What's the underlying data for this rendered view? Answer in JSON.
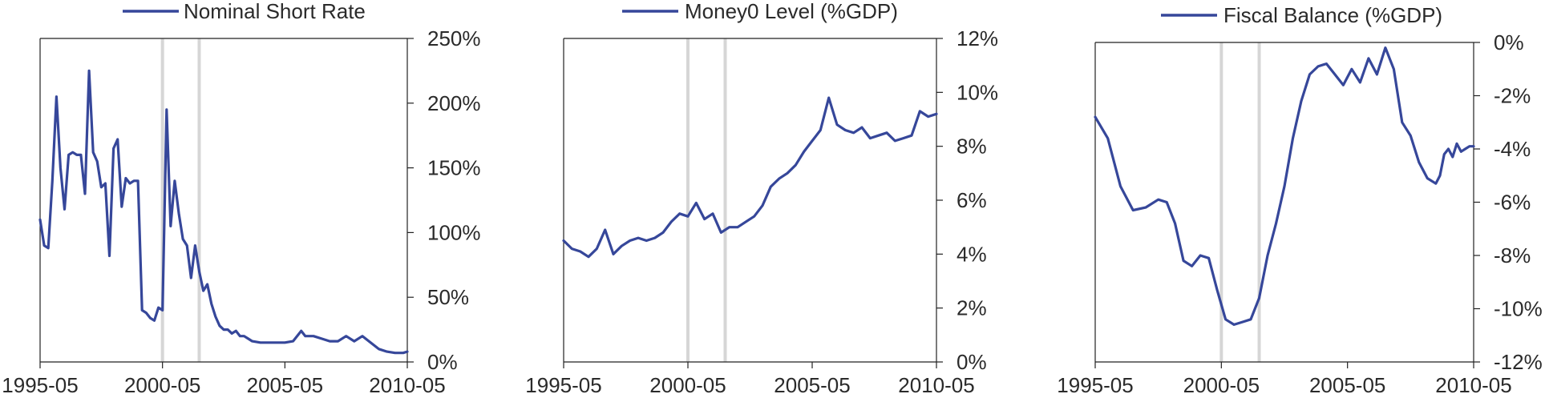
{
  "chart_data": [
    {
      "type": "line",
      "legend": "Nominal Short Rate",
      "color": "#36479a",
      "x_ticks": [
        "1995-05",
        "2000-05",
        "2005-05",
        "2010-05"
      ],
      "y_ticks": [
        "250%",
        "200%",
        "150%",
        "100%",
        "50%",
        "0%"
      ],
      "ylim": [
        0,
        250
      ],
      "y_axis_side": "right",
      "highlight_periods": [
        "2000-05",
        "2001-11"
      ],
      "series": [
        {
          "x": [
            "1995-05",
            "1995-07",
            "1995-09",
            "1995-11",
            "1996-01",
            "1996-03",
            "1996-05",
            "1996-07",
            "1996-09",
            "1996-11",
            "1997-01",
            "1997-03",
            "1997-05",
            "1997-07",
            "1997-09",
            "1997-11",
            "1998-01",
            "1998-03",
            "1998-05",
            "1998-07",
            "1998-09",
            "1998-11",
            "1999-01",
            "1999-03",
            "1999-05",
            "1999-07",
            "1999-09",
            "1999-11",
            "2000-01",
            "2000-03",
            "2000-05",
            "2000-07",
            "2000-09",
            "2000-11",
            "2001-01",
            "2001-03",
            "2001-05",
            "2001-07",
            "2001-09",
            "2001-11",
            "2002-01",
            "2002-03",
            "2002-05",
            "2002-07",
            "2002-09",
            "2002-11",
            "2003-01",
            "2003-03",
            "2003-05",
            "2003-07",
            "2003-09",
            "2003-11",
            "2004-01",
            "2004-05",
            "2004-09",
            "2005-01",
            "2005-05",
            "2005-09",
            "2006-01",
            "2006-03",
            "2006-07",
            "2006-11",
            "2007-03",
            "2007-07",
            "2007-11",
            "2008-03",
            "2008-07",
            "2008-11",
            "2009-03",
            "2009-07",
            "2009-11",
            "2010-03",
            "2010-05"
          ],
          "values": [
            110,
            90,
            88,
            140,
            205,
            150,
            118,
            160,
            162,
            160,
            160,
            130,
            225,
            162,
            155,
            135,
            138,
            82,
            165,
            172,
            120,
            142,
            138,
            140,
            140,
            40,
            38,
            34,
            32,
            42,
            40,
            195,
            105,
            140,
            115,
            95,
            90,
            65,
            90,
            70,
            55,
            60,
            45,
            35,
            28,
            25,
            25,
            22,
            24,
            20,
            20,
            18,
            16,
            15,
            15,
            15,
            15,
            16,
            24,
            20,
            20,
            18,
            16,
            16,
            20,
            16,
            20,
            15,
            10,
            8,
            7,
            7,
            8
          ]
        }
      ]
    },
    {
      "type": "line",
      "legend": "Money0 Level (%GDP)",
      "color": "#36479a",
      "x_ticks": [
        "1995-05",
        "2000-05",
        "2005-05",
        "2010-05"
      ],
      "y_ticks": [
        "12%",
        "10%",
        "8%",
        "6%",
        "4%",
        "2%",
        "0%"
      ],
      "ylim": [
        0,
        12
      ],
      "y_axis_side": "right",
      "highlight_periods": [
        "2000-05",
        "2001-11"
      ],
      "series": [
        {
          "x": [
            "1995-05",
            "1995-09",
            "1996-01",
            "1996-05",
            "1996-09",
            "1997-01",
            "1997-05",
            "1997-09",
            "1998-01",
            "1998-05",
            "1998-09",
            "1999-01",
            "1999-05",
            "1999-09",
            "2000-01",
            "2000-05",
            "2000-09",
            "2001-01",
            "2001-05",
            "2001-09",
            "2002-01",
            "2002-05",
            "2002-09",
            "2003-01",
            "2003-05",
            "2003-09",
            "2004-01",
            "2004-05",
            "2004-09",
            "2005-01",
            "2005-05",
            "2005-09",
            "2006-01",
            "2006-05",
            "2006-09",
            "2007-01",
            "2007-05",
            "2007-09",
            "2008-01",
            "2008-05",
            "2008-09",
            "2009-01",
            "2009-05",
            "2009-09",
            "2010-01",
            "2010-05"
          ],
          "values": [
            4.5,
            4.2,
            4.1,
            3.9,
            4.2,
            4.9,
            4.0,
            4.3,
            4.5,
            4.6,
            4.5,
            4.6,
            4.8,
            5.2,
            5.5,
            5.4,
            5.9,
            5.3,
            5.5,
            4.8,
            5.0,
            5.0,
            5.2,
            5.4,
            5.8,
            6.5,
            6.8,
            7.0,
            7.3,
            7.8,
            8.2,
            8.6,
            9.8,
            8.8,
            8.6,
            8.5,
            8.7,
            8.3,
            8.4,
            8.5,
            8.2,
            8.3,
            8.4,
            9.3,
            9.1,
            9.2
          ]
        }
      ]
    },
    {
      "type": "line",
      "legend": "Fiscal Balance (%GDP)",
      "color": "#36479a",
      "x_ticks": [
        "1995-05",
        "2000-05",
        "2005-05",
        "2010-05"
      ],
      "y_ticks": [
        "0%",
        "-2%",
        "-4%",
        "-6%",
        "-8%",
        "-10%",
        "-12%"
      ],
      "ylim": [
        -12,
        0
      ],
      "y_axis_side": "right",
      "highlight_periods": [
        "2000-05",
        "2001-11"
      ],
      "series": [
        {
          "x": [
            "1995-05",
            "1995-11",
            "1996-05",
            "1996-11",
            "1997-05",
            "1997-11",
            "1998-03",
            "1998-07",
            "1998-11",
            "1999-03",
            "1999-07",
            "1999-11",
            "2000-03",
            "2000-07",
            "2000-11",
            "2001-03",
            "2001-07",
            "2001-11",
            "2002-03",
            "2002-07",
            "2002-11",
            "2003-03",
            "2003-07",
            "2003-11",
            "2004-03",
            "2004-07",
            "2004-11",
            "2005-03",
            "2005-07",
            "2005-11",
            "2006-03",
            "2006-07",
            "2006-11",
            "2007-03",
            "2007-07",
            "2007-11",
            "2008-03",
            "2008-07",
            "2008-11",
            "2009-01",
            "2009-03",
            "2009-05",
            "2009-07",
            "2009-09",
            "2009-11",
            "2010-01",
            "2010-03",
            "2010-05"
          ],
          "values": [
            -2.8,
            -3.6,
            -5.4,
            -6.3,
            -6.2,
            -5.9,
            -6.0,
            -6.8,
            -8.2,
            -8.4,
            -8.0,
            -8.1,
            -9.3,
            -10.4,
            -10.6,
            -10.5,
            -10.4,
            -9.6,
            -8.0,
            -6.8,
            -5.4,
            -3.6,
            -2.2,
            -1.2,
            -0.9,
            -0.8,
            -1.2,
            -1.6,
            -1.0,
            -1.5,
            -0.6,
            -1.2,
            -0.2,
            -1.0,
            -3.0,
            -3.5,
            -4.5,
            -5.1,
            -5.3,
            -5.0,
            -4.2,
            -4.0,
            -4.3,
            -3.8,
            -4.1,
            -4.0,
            -3.9,
            -3.9
          ]
        }
      ]
    }
  ]
}
